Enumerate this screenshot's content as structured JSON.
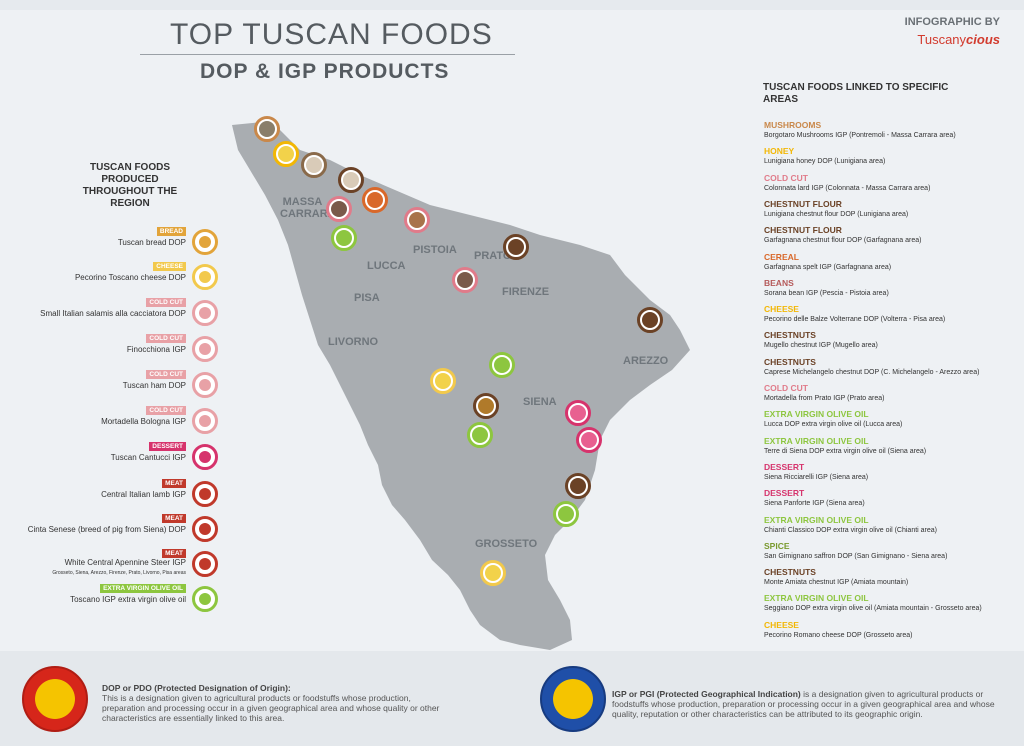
{
  "header": {
    "title": "TOP TUSCAN FOODS",
    "subtitle": "DOP & IGP PRODUCTS",
    "credit_by": "INFOGRAPHIC BY",
    "credit_brand_plain": "Tuscany",
    "credit_brand_bold": "cious"
  },
  "left_heading": "TUSCAN FOODS PRODUCED THROUGHOUT THE REGION",
  "right_heading": "TUSCAN FOODS LINKED TO SPECIFIC AREAS",
  "cities": [
    "MASSA CARRARA",
    "PISTOIA",
    "PRATO",
    "LUCCA",
    "FIRENZE",
    "PISA",
    "LIVORNO",
    "AREZZO",
    "SIENA",
    "GROSSETO"
  ],
  "left_items": [
    {
      "tag": "BREAD",
      "name": "Tuscan bread DOP",
      "color": "#e2a43a"
    },
    {
      "tag": "CHEESE",
      "name": "Pecorino Toscano cheese DOP",
      "color": "#f2c94c"
    },
    {
      "tag": "COLD CUT",
      "name": "Small Italian salamis alla cacciatora DOP",
      "color": "#e8a1a6"
    },
    {
      "tag": "COLD CUT",
      "name": "Finocchiona IGP",
      "color": "#e8a1a6"
    },
    {
      "tag": "COLD CUT",
      "name": "Tuscan ham DOP",
      "color": "#e8a1a6"
    },
    {
      "tag": "COLD CUT",
      "name": "Mortadella Bologna IGP",
      "color": "#e8a1a6"
    },
    {
      "tag": "DESSERT",
      "name": "Tuscan Cantucci IGP",
      "color": "#d6336c"
    },
    {
      "tag": "MEAT",
      "name": "Central Italian lamb IGP",
      "color": "#c0392b"
    },
    {
      "tag": "MEAT",
      "name": "Cinta Senese (breed of pig from Siena) DOP",
      "color": "#c0392b"
    },
    {
      "tag": "MEAT",
      "name": "White Central Apennine Steer IGP",
      "sub": "Grosseto, Siena, Arezzo, Firenze, Prato, Livorno, Pisa areas",
      "color": "#c0392b"
    },
    {
      "tag": "EXTRA VIRGIN OLIVE OIL",
      "name": "Toscano IGP extra virgin olive oil",
      "color": "#8dc63f"
    }
  ],
  "right_items": [
    {
      "cat": "MUSHROOMS",
      "desc": "Borgotaro Mushrooms IGP (Pontremoli - Massa Carrara area)",
      "color": "#c9884a"
    },
    {
      "cat": "HONEY",
      "desc": "Lunigiana honey DOP (Lunigiana area)",
      "color": "#f2b705"
    },
    {
      "cat": "COLD CUT",
      "desc": "Colonnata lard IGP (Colonnata - Massa Carrara area)",
      "color": "#e07b8a"
    },
    {
      "cat": "CHESTNUT FLOUR",
      "desc": "Lunigiana chestnut flour DOP (Lunigiana area)",
      "color": "#6b4226"
    },
    {
      "cat": "CHESTNUT FLOUR",
      "desc": "Garfagnana chestnut flour DOP (Garfagnana area)",
      "color": "#6b4226"
    },
    {
      "cat": "CEREAL",
      "desc": "Garfagnana spelt IGP (Garfagnana area)",
      "color": "#d9682a"
    },
    {
      "cat": "BEANS",
      "desc": "Sorana bean IGP (Pescia - Pistoia area)",
      "color": "#b55a5a"
    },
    {
      "cat": "CHEESE",
      "desc": "Pecorino delle Balze Volterrane DOP (Volterra - Pisa area)",
      "color": "#f2b705"
    },
    {
      "cat": "CHESTNUTS",
      "desc": "Mugello chestnut IGP (Mugello area)",
      "color": "#6b4226"
    },
    {
      "cat": "CHESTNUTS",
      "desc": "Caprese Michelangelo chestnut DOP (C. Michelangelo - Arezzo area)",
      "color": "#6b4226"
    },
    {
      "cat": "COLD CUT",
      "desc": "Mortadella from Prato IGP (Prato area)",
      "color": "#e07b8a"
    },
    {
      "cat": "EXTRA VIRGIN OLIVE OIL",
      "desc": "Lucca DOP extra virgin olive oil (Lucca area)",
      "color": "#8dc63f"
    },
    {
      "cat": "EXTRA VIRGIN OLIVE OIL",
      "desc": "Terre di Siena DOP extra virgin olive oil (Siena area)",
      "color": "#8dc63f"
    },
    {
      "cat": "DESSERT",
      "desc": "Siena Ricciarelli IGP (Siena area)",
      "color": "#d6336c"
    },
    {
      "cat": "DESSERT",
      "desc": "Siena Panforte IGP (Siena area)",
      "color": "#d6336c"
    },
    {
      "cat": "EXTRA VIRGIN OLIVE OIL",
      "desc": "Chianti Classico DOP extra virgin olive oil (Chianti area)",
      "color": "#8dc63f"
    },
    {
      "cat": "SPICE",
      "desc": "San Gimignano saffron DOP (San Gimignano - Siena area)",
      "color": "#7a9a2e"
    },
    {
      "cat": "CHESTNUTS",
      "desc": "Monte Amiata chestnut IGP (Amiata mountain)",
      "color": "#6b4226"
    },
    {
      "cat": "EXTRA VIRGIN OLIVE OIL",
      "desc": "Seggiano DOP extra virgin olive oil (Amiata mountain - Grosseto area)",
      "color": "#8dc63f"
    },
    {
      "cat": "CHEESE",
      "desc": "Pecorino Romano cheese DOP (Grosseto area)",
      "color": "#f2b705"
    }
  ],
  "footer": {
    "dop_title": "DOP or PDO (Protected Designation of Origin):",
    "dop_text": "This is a designation given to agricultural products or foodstuffs whose production, preparation and processing occur in a given geographical area and whose quality or other characteristics are essentially linked to this area.",
    "igp_title": "IGP or PGI (Protected Geographical Indication)",
    "igp_text": " is a designation given to agricultural products or foodstuffs whose production, preparation or processing occur in a given geographical area and whose quality, reputation or other characteristics can be attributed to its geographic origin."
  }
}
